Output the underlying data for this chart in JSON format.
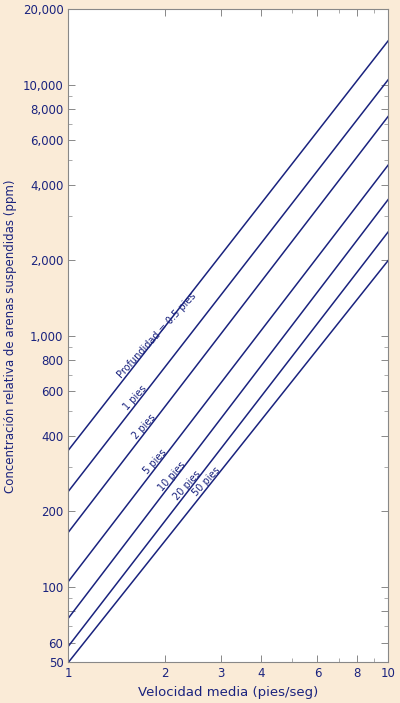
{
  "background_color": "#faebd7",
  "plot_background": "#ffffff",
  "line_color": "#1a237e",
  "xlabel": "Velocidad media (pies/seg)",
  "ylabel": "Concentración relativa de arenas suspendidas (ppm)",
  "xlabel_fontsize": 9.5,
  "ylabel_fontsize": 8.5,
  "xlim": [
    1,
    10
  ],
  "ylim": [
    50,
    20000
  ],
  "xticks": [
    1,
    2,
    3,
    4,
    6,
    8,
    10
  ],
  "xtick_labels": [
    "1",
    "2",
    "3",
    "4",
    "6",
    "8",
    "10"
  ],
  "yticks": [
    50,
    60,
    80,
    100,
    200,
    400,
    600,
    800,
    1000,
    2000,
    4000,
    6000,
    8000,
    10000,
    20000
  ],
  "ytick_labels": [
    "50",
    "60",
    "",
    "100",
    "200",
    "400",
    "600",
    "800",
    "1,000",
    "2,000",
    "4,000",
    "6,000",
    "8,000",
    "10,000",
    "20,000"
  ],
  "depth_labels": [
    "Profundidad = 0.5 pies",
    "1 pies",
    "2 pies",
    "5 pies",
    "10 pies",
    "20 pies",
    "50 pies"
  ],
  "line_v1_values": [
    350,
    240,
    165,
    105,
    75,
    58,
    50
  ],
  "line_v10_values": [
    15000,
    10500,
    7500,
    4800,
    3500,
    2600,
    2000
  ],
  "label_vx": [
    1.45,
    1.52,
    1.62,
    1.75,
    1.95,
    2.18,
    2.5
  ],
  "tick_fontsize": 8.5
}
